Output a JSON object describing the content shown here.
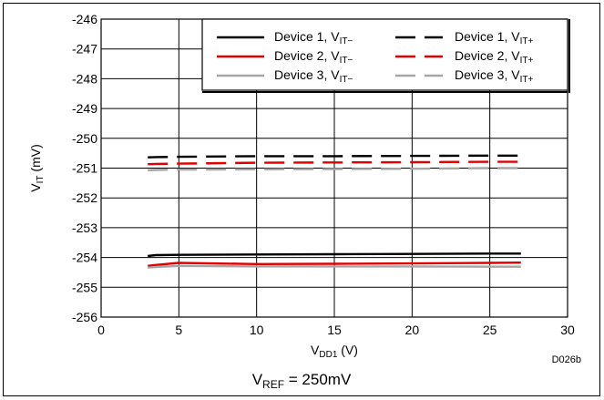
{
  "chart_data": {
    "type": "line",
    "xlabel": {
      "main": "V",
      "sub": "DD1",
      "unit": " (V)"
    },
    "ylabel": {
      "main": "V",
      "sub": "IT",
      "unit": " (mV)"
    },
    "xlim": [
      0,
      30
    ],
    "ylim": [
      -256,
      -246
    ],
    "xticks": [
      0,
      5,
      10,
      15,
      20,
      25,
      30
    ],
    "yticks": [
      -246,
      -247,
      -248,
      -249,
      -250,
      -251,
      -252,
      -253,
      -254,
      -255,
      -256
    ],
    "grid": true,
    "legend_position": "top-right",
    "annotation": "D026b",
    "footer": {
      "main": "V",
      "sub": "REF",
      "rest": " = 250mV"
    },
    "series": [
      {
        "name": "Device 1, VIT−",
        "label_prefix": "Device 1, V",
        "label_sub": "IT−",
        "color": "#000000",
        "dash": "solid",
        "x": [
          3,
          3.5,
          5,
          10,
          15,
          20,
          25,
          27
        ],
        "y": [
          -253.95,
          -253.92,
          -253.91,
          -253.9,
          -253.89,
          -253.88,
          -253.87,
          -253.87
        ]
      },
      {
        "name": "Device 2, VIT−",
        "label_prefix": "Device 2, V",
        "label_sub": "IT−",
        "color": "#e00000",
        "dash": "solid",
        "x": [
          3,
          3.5,
          5,
          10,
          15,
          20,
          25,
          27
        ],
        "y": [
          -254.28,
          -254.25,
          -254.18,
          -254.22,
          -254.21,
          -254.2,
          -254.18,
          -254.17
        ]
      },
      {
        "name": "Device 3, VIT−",
        "label_prefix": "Device 3, V",
        "label_sub": "IT−",
        "color": "#a6a6a6",
        "dash": "solid",
        "x": [
          3,
          3.5,
          5,
          10,
          15,
          20,
          25,
          27
        ],
        "y": [
          -254.34,
          -254.32,
          -254.28,
          -254.3,
          -254.3,
          -254.3,
          -254.31,
          -254.31
        ]
      },
      {
        "name": "Device 1, VIT+",
        "label_prefix": "Device 1, V",
        "label_sub": "IT+",
        "color": "#000000",
        "dash": "dash",
        "x": [
          3,
          3.5,
          5,
          10,
          15,
          20,
          25,
          27
        ],
        "y": [
          -250.64,
          -250.63,
          -250.62,
          -250.6,
          -250.6,
          -250.59,
          -250.58,
          -250.58
        ]
      },
      {
        "name": "Device 2, VIT+",
        "label_prefix": "Device 2, V",
        "label_sub": "IT+",
        "color": "#e00000",
        "dash": "dash",
        "x": [
          3,
          3.5,
          5,
          10,
          15,
          20,
          25,
          27
        ],
        "y": [
          -250.87,
          -250.86,
          -250.85,
          -250.82,
          -250.81,
          -250.8,
          -250.79,
          -250.79
        ]
      },
      {
        "name": "Device 3, VIT+",
        "label_prefix": "Device 3, V",
        "label_sub": "IT+",
        "color": "#a6a6a6",
        "dash": "dash",
        "x": [
          3,
          3.5,
          5,
          10,
          15,
          20,
          25,
          27
        ],
        "y": [
          -251.07,
          -251.06,
          -251.05,
          -251.04,
          -251.03,
          -251.02,
          -251.0,
          -251.0
        ]
      }
    ]
  }
}
